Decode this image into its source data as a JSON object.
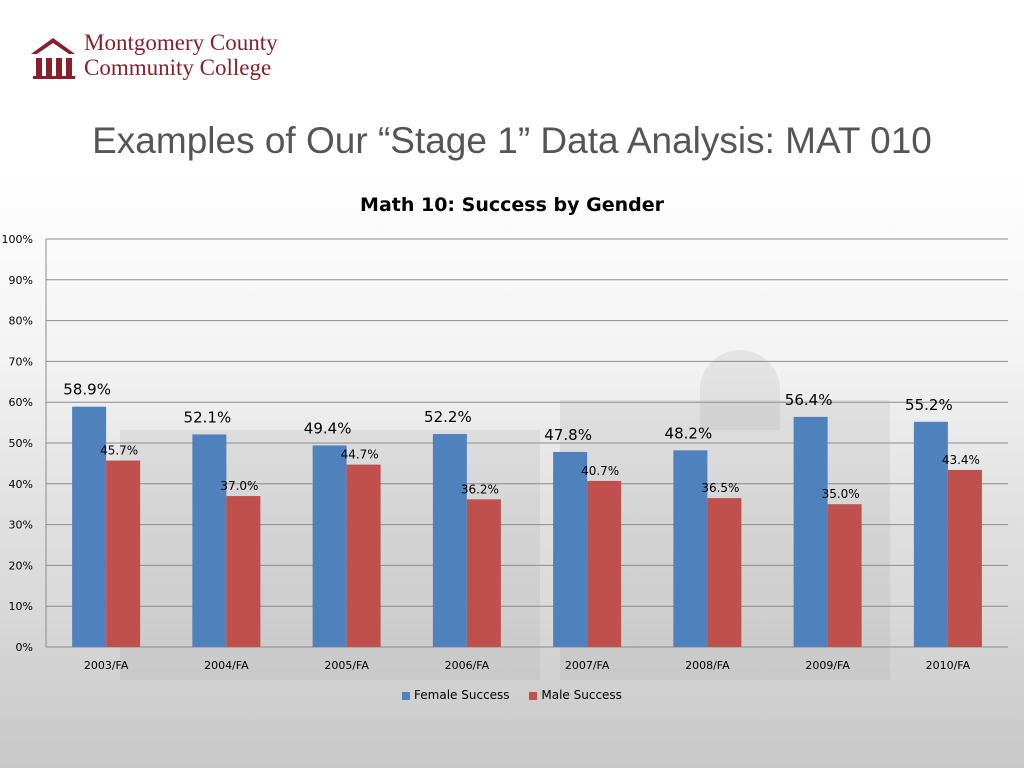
{
  "header": {
    "college_line1": "Montgomery County",
    "college_line2": "Community College",
    "logo_icon": "college-building-logo-icon",
    "slide_title": "Examples of Our “Stage 1” Data Analysis:  MAT 010"
  },
  "colors": {
    "brand": "#8a1f2c",
    "female": "#4f81bd",
    "male": "#c0504d",
    "grid": "#8c8c8c"
  },
  "chart_data": {
    "type": "bar",
    "title": "Math 10: Success by Gender",
    "xlabel": "",
    "ylabel": "",
    "ylim": [
      0,
      100
    ],
    "y_ticks": [
      "0%",
      "10%",
      "20%",
      "30%",
      "40%",
      "50%",
      "60%",
      "70%",
      "80%",
      "90%",
      "100%"
    ],
    "grid": true,
    "legend_position": "bottom",
    "categories": [
      "2003/FA",
      "2004/FA",
      "2005/FA",
      "2006/FA",
      "2007/FA",
      "2008/FA",
      "2009/FA",
      "2010/FA"
    ],
    "series": [
      {
        "name": "Female Success",
        "values": [
          58.9,
          52.1,
          49.4,
          52.2,
          47.8,
          48.2,
          56.4,
          55.2
        ],
        "labels": [
          "58.9%",
          "52.1%",
          "49.4%",
          "52.2%",
          "47.8%",
          "48.2%",
          "56.4%",
          "55.2%"
        ]
      },
      {
        "name": "Male Success",
        "values": [
          45.7,
          37.0,
          44.7,
          36.2,
          40.7,
          36.5,
          35.0,
          43.4
        ],
        "labels": [
          "45.7%",
          "37.0%",
          "44.7%",
          "36.2%",
          "40.7%",
          "36.5%",
          "35.0%",
          "43.4%"
        ]
      }
    ]
  }
}
